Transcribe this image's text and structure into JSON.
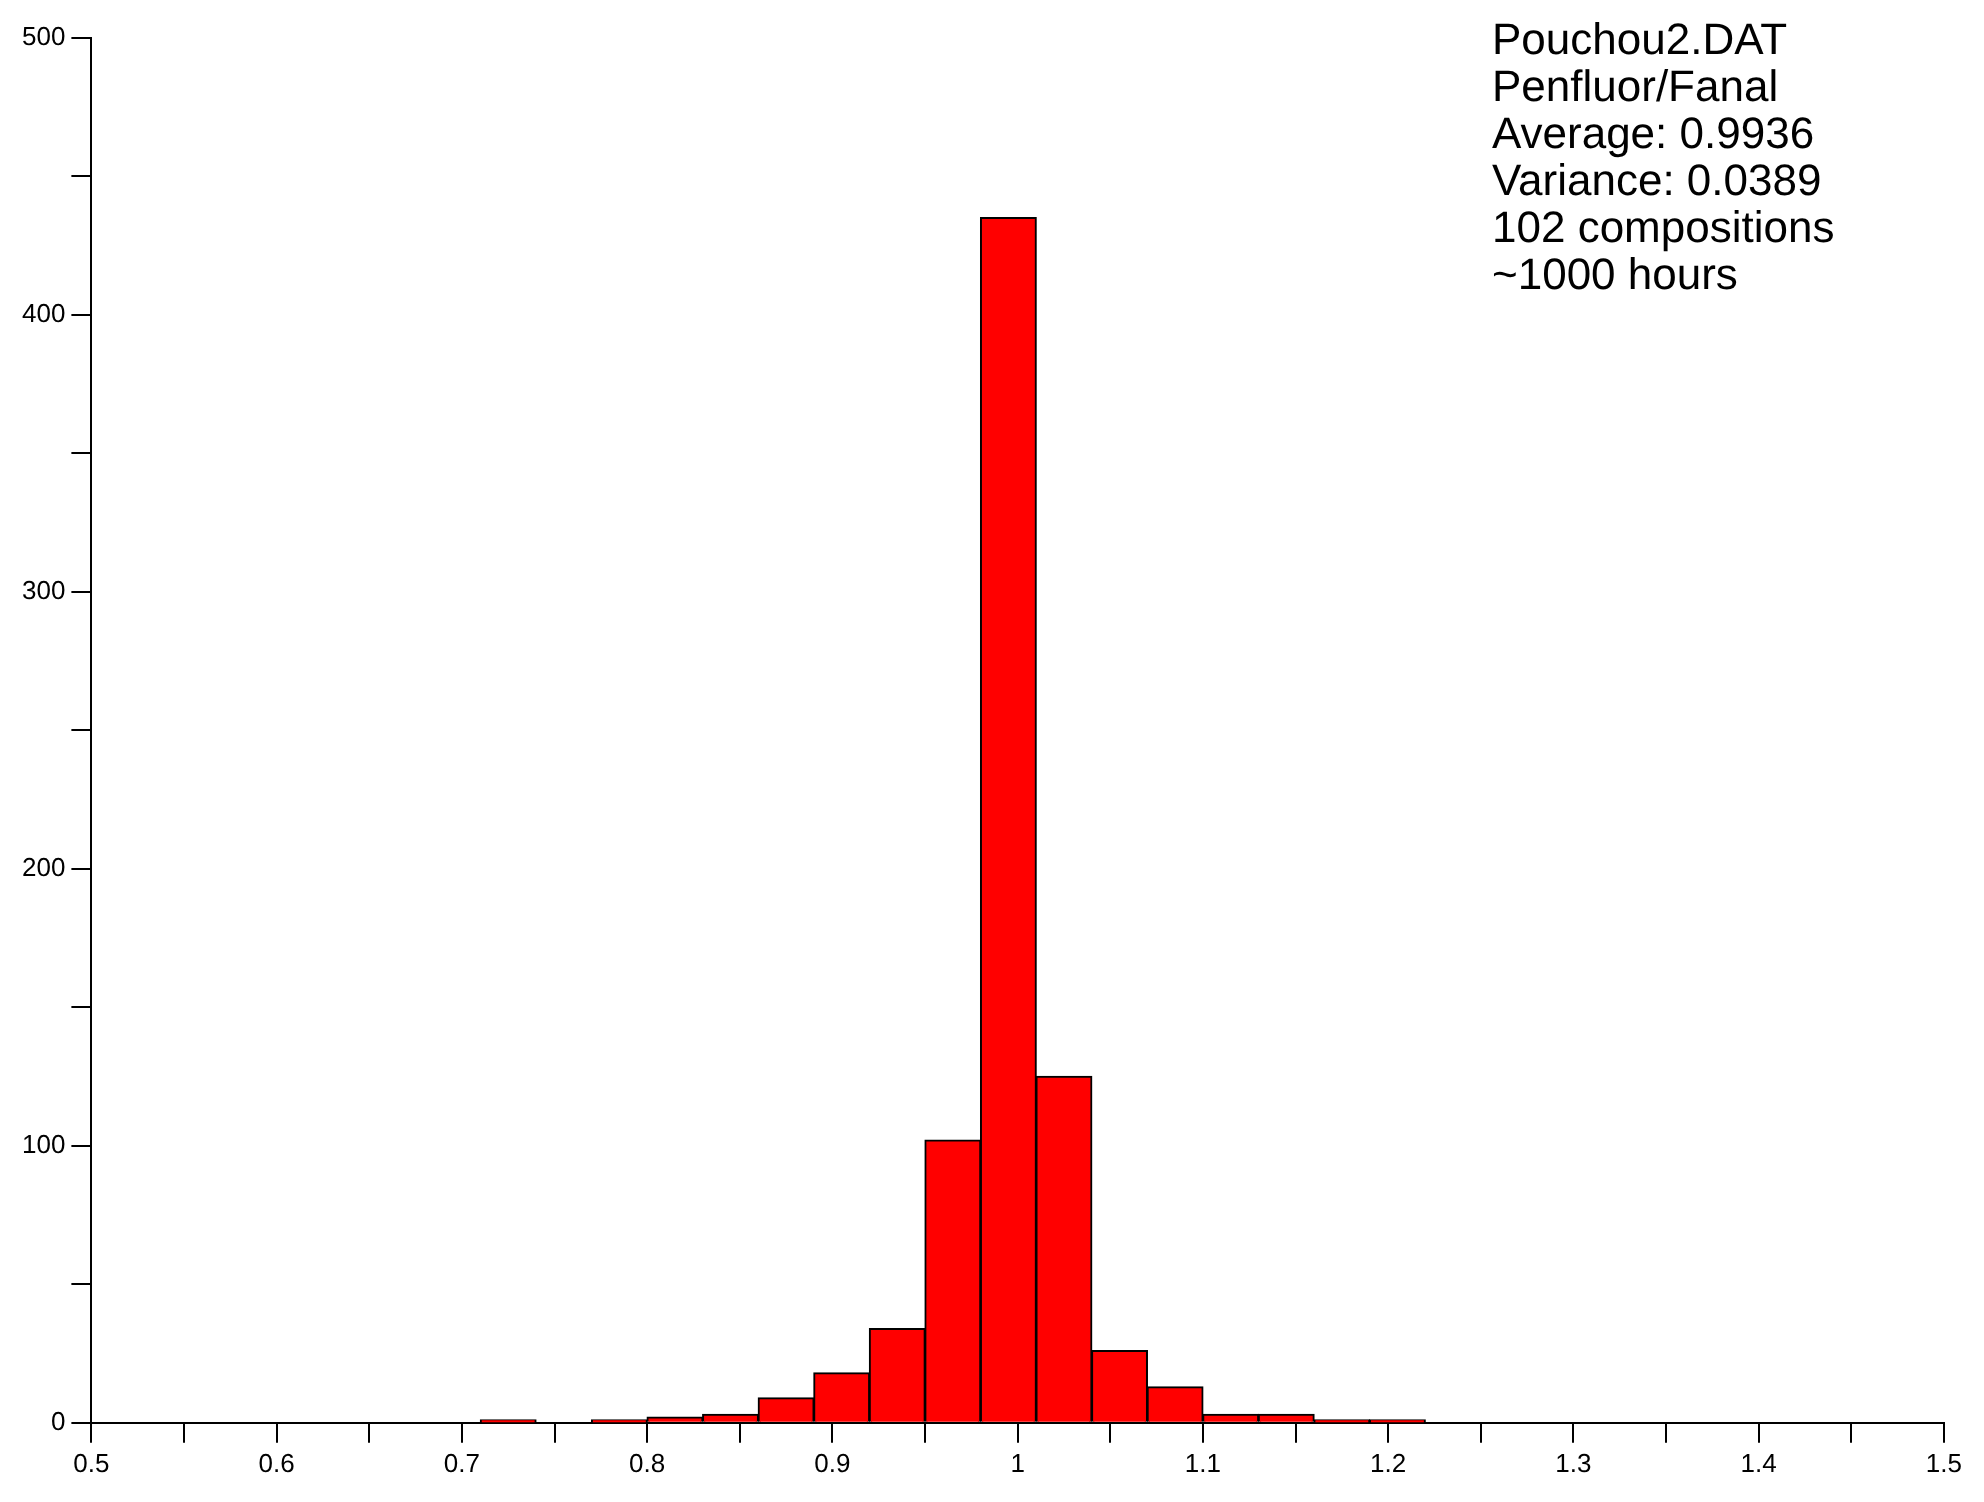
{
  "chart_data": {
    "type": "histogram",
    "bins": [
      0.71,
      0.74,
      0.77,
      0.8,
      0.83,
      0.86,
      0.89,
      0.92,
      0.95,
      0.98,
      1.01,
      1.04,
      1.07,
      1.1,
      1.13,
      1.16,
      1.19,
      1.22
    ],
    "values": [
      1,
      0,
      1,
      2,
      3,
      9,
      18,
      34,
      102,
      435,
      125,
      26,
      13,
      3,
      3,
      1,
      1
    ],
    "color": "#ff0000",
    "xlim": [
      0.5,
      1.5
    ],
    "xticks": [
      0.5,
      {
        "value": 0.55,
        "label": null
      },
      0.6,
      {
        "value": 0.65,
        "label": null
      },
      0.7,
      {
        "value": 0.75,
        "label": null
      },
      0.8,
      {
        "value": 0.85,
        "label": null
      },
      0.9,
      {
        "value": 0.95,
        "label": null
      },
      1,
      {
        "value": 1.05,
        "label": null
      },
      1.1,
      {
        "value": 1.15,
        "label": null
      },
      1.2,
      {
        "value": 1.25,
        "label": null
      },
      1.3,
      {
        "value": 1.35,
        "label": null
      },
      1.4,
      {
        "value": 1.45,
        "label": null
      },
      1.5
    ],
    "ylim": [
      0,
      500
    ],
    "yticks": [
      0,
      {
        "value": 50,
        "label": null
      },
      100,
      {
        "value": 150,
        "label": null
      },
      200,
      {
        "value": 250,
        "label": null
      },
      300,
      {
        "value": 350,
        "label": null
      },
      400,
      {
        "value": 450,
        "label": null
      },
      500
    ],
    "grid": false,
    "legend": false,
    "annotations": [
      "Pouchou2.DAT",
      "Penfluor/Fanal",
      "Average: 0.9936",
      "Variance: 0.0389",
      "102 compositions",
      "~1000 hours"
    ]
  }
}
